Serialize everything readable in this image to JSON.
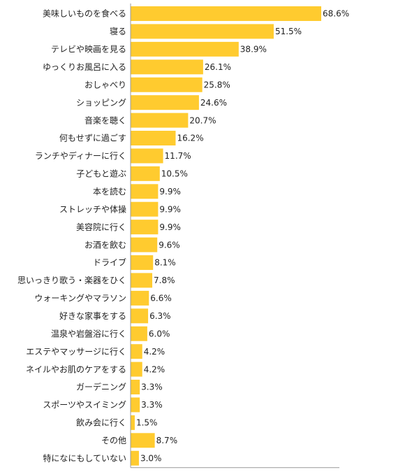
{
  "chart_data": {
    "type": "bar",
    "orientation": "horizontal",
    "categories": [
      "美味しいものを食べる",
      "寝る",
      "テレビや映画を見る",
      "ゆっくりお風呂に入る",
      "おしゃべり",
      "ショッピング",
      "音楽を聴く",
      "何もせずに過ごす",
      "ランチやディナーに行く",
      "子どもと遊ぶ",
      "本を読む",
      "ストレッチや体操",
      "美容院に行く",
      "お酒を飲む",
      "ドライブ",
      "思いっきり歌う・楽器をひく",
      "ウォーキングやマラソン",
      "好きな家事をする",
      "温泉や岩盤浴に行く",
      "エステやマッサージに行く",
      "ネイルやお肌のケアをする",
      "ガーデニング",
      "スポーツやスイミング",
      "飲み会に行く",
      "その他",
      "特になにもしていない"
    ],
    "values": [
      68.6,
      51.5,
      38.9,
      26.1,
      25.8,
      24.6,
      20.7,
      16.2,
      11.7,
      10.5,
      9.9,
      9.9,
      9.9,
      9.6,
      8.1,
      7.8,
      6.6,
      6.3,
      6.0,
      4.2,
      4.2,
      3.3,
      3.3,
      1.5,
      8.7,
      3.0
    ],
    "value_labels": [
      "68.6%",
      "51.5%",
      "38.9%",
      "26.1%",
      "25.8%",
      "24.6%",
      "20.7%",
      "16.2%",
      "11.7%",
      "10.5%",
      "9.9%",
      "9.9%",
      "9.9%",
      "9.6%",
      "8.1%",
      "7.8%",
      "6.6%",
      "6.3%",
      "6.0%",
      "4.2%",
      "4.2%",
      "3.3%",
      "3.3%",
      "1.5%",
      "8.7%",
      "3.0%"
    ],
    "unit": "%",
    "xlim": [
      0,
      70
    ],
    "grid": false,
    "legend": "none",
    "title": "",
    "xlabel": "",
    "ylabel": "",
    "colors": {
      "bar": "#FFCB2F",
      "axis": "#999999",
      "text": "#222222"
    }
  }
}
